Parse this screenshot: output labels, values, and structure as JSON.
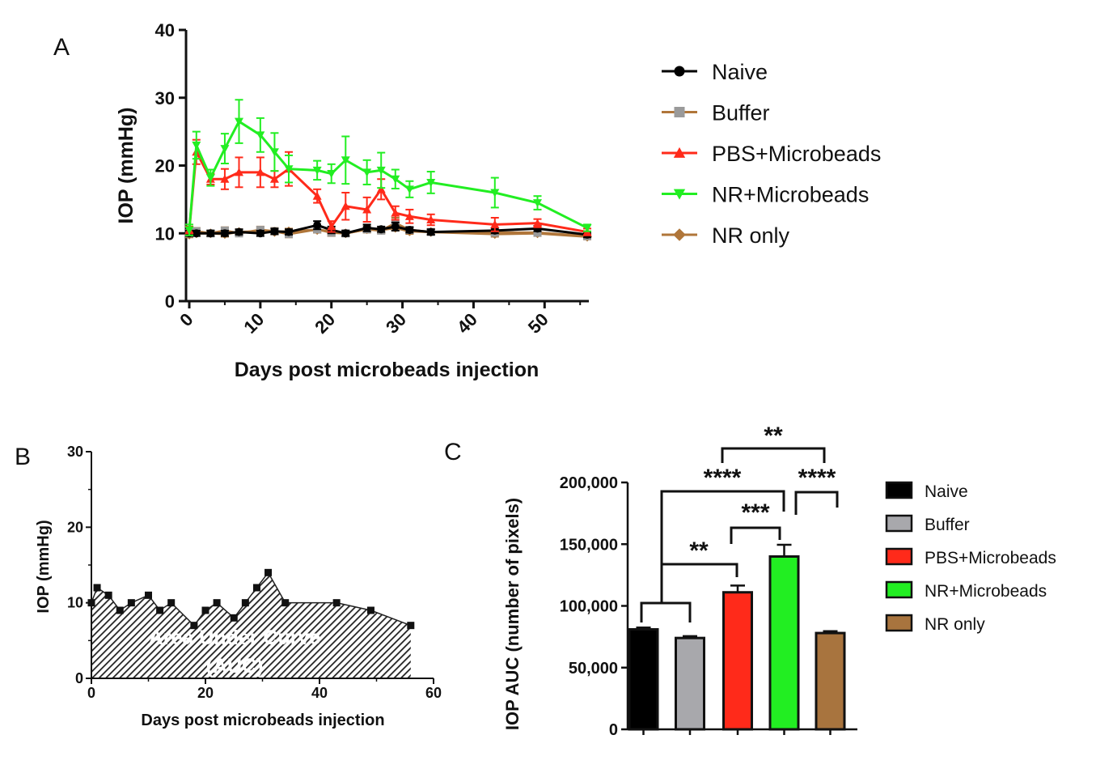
{
  "chart_data": [
    {
      "panel": "A",
      "type": "line",
      "xlabel": "Days post microbeads injection",
      "ylabel": "IOP (mmHg)",
      "xlim": [
        0,
        56
      ],
      "ylim": [
        0,
        40
      ],
      "xticks": [
        0,
        10,
        20,
        30,
        40,
        50
      ],
      "yticks": [
        0,
        10,
        20,
        30,
        40
      ],
      "legend_position": "right",
      "series": [
        {
          "name": "Naive",
          "color": "#000000",
          "marker": "circle",
          "x": [
            0,
            1,
            3,
            5,
            7,
            10,
            12,
            14,
            18,
            20,
            22,
            25,
            27,
            29,
            31,
            34,
            43,
            49,
            56
          ],
          "y": [
            10,
            10,
            10,
            10,
            10.2,
            10,
            10.3,
            10.2,
            11.2,
            10.5,
            10,
            10.8,
            10.6,
            11,
            10.5,
            10.2,
            10.4,
            10.7,
            9.8
          ],
          "err": [
            0.4,
            0.4,
            0.4,
            0.4,
            0.4,
            0.4,
            0.4,
            0.4,
            0.6,
            0.5,
            0.4,
            0.5,
            0.4,
            0.6,
            0.4,
            0.4,
            0.4,
            0.4,
            0.4
          ]
        },
        {
          "name": "Buffer",
          "color": "#b0763a",
          "marker_color": "#9a9a9a",
          "marker": "square",
          "x": [
            0,
            1,
            3,
            5,
            7,
            10,
            12,
            14,
            18,
            20,
            22,
            25,
            27,
            29,
            31,
            34,
            43,
            49,
            56
          ],
          "y": [
            10,
            10.3,
            10,
            10.4,
            10,
            10.5,
            10.3,
            9.9,
            10.6,
            10.1,
            10,
            10.6,
            10.4,
            11.5,
            10.5,
            10.2,
            10.1,
            10.1,
            9.6
          ],
          "err": [
            0.4,
            0.5,
            0.4,
            0.5,
            0.4,
            0.5,
            0.5,
            0.5,
            0.5,
            0.5,
            0.4,
            0.5,
            0.4,
            0.8,
            0.4,
            0.4,
            0.4,
            0.4,
            0.4
          ]
        },
        {
          "name": "PBS+Microbeads",
          "color": "#ff2a1a",
          "marker": "triangle-up",
          "x": [
            0,
            1,
            3,
            5,
            7,
            10,
            12,
            14,
            18,
            20,
            22,
            25,
            27,
            29,
            31,
            34,
            43,
            49,
            56
          ],
          "y": [
            10.5,
            22,
            18,
            18,
            19,
            19,
            18,
            19.5,
            15.5,
            11,
            14,
            13.5,
            16.5,
            13,
            12.5,
            12,
            11.3,
            11.5,
            10.2
          ],
          "err": [
            0.5,
            1.8,
            0.8,
            1.5,
            2.2,
            2.2,
            1.2,
            2.5,
            1.0,
            0.8,
            2.0,
            1.8,
            1.5,
            1.0,
            1.0,
            0.8,
            1.0,
            0.6,
            0.5
          ]
        },
        {
          "name": "NR+Microbeads",
          "color": "#22ee22",
          "marker": "triangle-down",
          "x": [
            0,
            1,
            3,
            5,
            7,
            10,
            12,
            14,
            18,
            20,
            22,
            25,
            27,
            29,
            31,
            34,
            43,
            49,
            56
          ],
          "y": [
            10.5,
            23,
            18.2,
            22.5,
            26.5,
            24.5,
            22,
            19.5,
            19.3,
            18.8,
            20.8,
            19,
            19.3,
            18,
            16.5,
            17.5,
            16,
            14.5,
            10.8
          ],
          "err": [
            0.8,
            2.0,
            1.2,
            2.2,
            3.2,
            2.5,
            2.8,
            2.0,
            1.4,
            1.4,
            3.5,
            1.8,
            2.6,
            1.4,
            1.2,
            1.6,
            2.2,
            1.0,
            0.5
          ]
        },
        {
          "name": "NR only",
          "color": "#b0763a",
          "marker": "diamond",
          "x": [
            0,
            1,
            3,
            5,
            7,
            10,
            12,
            14,
            18,
            20,
            22,
            25,
            27,
            29,
            31,
            34,
            43,
            49,
            56
          ],
          "y": [
            9.8,
            10,
            10,
            9.9,
            10.2,
            10.3,
            10.2,
            10.3,
            10.5,
            10.3,
            10,
            10.6,
            10.5,
            10.8,
            10.3,
            10.2,
            9.9,
            10,
            9.5
          ],
          "err": [
            0.4,
            0.4,
            0.4,
            0.4,
            0.4,
            0.4,
            0.4,
            0.4,
            0.4,
            0.4,
            0.4,
            0.4,
            0.4,
            0.4,
            0.4,
            0.4,
            0.4,
            0.4,
            0.4
          ]
        }
      ]
    },
    {
      "panel": "B",
      "type": "area",
      "xlabel": "Days post microbeads injection",
      "ylabel": "IOP (mmHg)",
      "xlim": [
        0,
        60
      ],
      "ylim": [
        0,
        30
      ],
      "xticks": [
        0,
        20,
        40,
        60
      ],
      "yticks": [
        0,
        10,
        20,
        30
      ],
      "annotation": [
        "Area Under Curve",
        "(AUC)"
      ],
      "x": [
        0,
        1,
        3,
        5,
        7,
        10,
        12,
        14,
        18,
        20,
        22,
        25,
        27,
        29,
        31,
        34,
        43,
        49,
        56
      ],
      "y": [
        10,
        12,
        11,
        9,
        10,
        11,
        9,
        10,
        7,
        9,
        10,
        8,
        10,
        12,
        14,
        10,
        10,
        9,
        7
      ]
    },
    {
      "panel": "C",
      "type": "bar",
      "ylabel": "IOP AUC (number of pixels)",
      "ylim": [
        0,
        200000
      ],
      "yticks": [
        0,
        50000,
        100000,
        150000,
        200000
      ],
      "ytick_labels": [
        "0",
        "50,000",
        "100,000",
        "150,000",
        "200,000"
      ],
      "categories": [
        "Naive",
        "Buffer",
        "PBS+Microbeads",
        "NR+Microbeads",
        "NR only"
      ],
      "colors": [
        "#000000",
        "#a8a8ac",
        "#ff2a1a",
        "#22ee22",
        "#a8743e"
      ],
      "values": [
        81000,
        74000,
        111000,
        140000,
        78000
      ],
      "errors": [
        1500,
        1500,
        5500,
        9500,
        1500
      ],
      "legend_position": "right",
      "significance": [
        {
          "label": "**",
          "group_a": [
            0,
            1
          ],
          "group_b": [
            2
          ]
        },
        {
          "label": "***",
          "group_a": [
            2
          ],
          "group_b": [
            3
          ]
        },
        {
          "label": "****",
          "group_a": [
            0,
            1
          ],
          "group_b": [
            3
          ]
        },
        {
          "label": "****",
          "group_a": [
            3
          ],
          "group_b": [
            4
          ]
        },
        {
          "label": "**",
          "group_a": [
            2
          ],
          "group_b": [
            4
          ]
        }
      ]
    }
  ],
  "panels": {
    "a": "A",
    "b": "B",
    "c": "C"
  }
}
